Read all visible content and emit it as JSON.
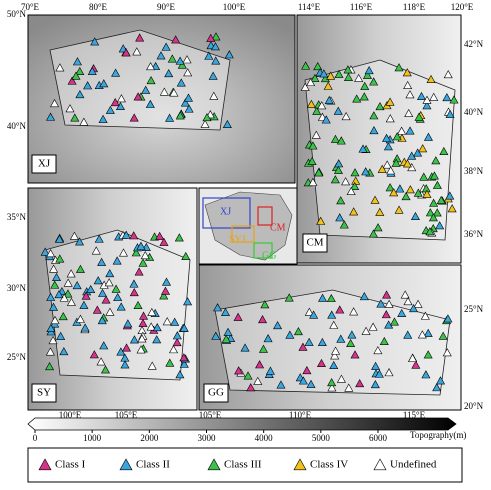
{
  "panels": [
    {
      "label": "XJ",
      "top_ticks": [
        "70°E",
        "80°E",
        "90°E",
        "100°E"
      ],
      "left_ticks": [
        "50°N",
        "40°N"
      ]
    },
    {
      "label": "CM",
      "top_ticks": [
        "114°E",
        "116°E",
        "118°E",
        "120°E"
      ],
      "right_ticks": [
        "42°N",
        "40°N",
        "38°N",
        "36°N"
      ]
    },
    {
      "label": "SY",
      "left_ticks": [
        "35°N",
        "30°N",
        "25°N"
      ],
      "bottom_ticks": [
        "100°E",
        "105°E"
      ]
    },
    {
      "label": "GG",
      "bottom_ticks": [
        "105°E",
        "110°E",
        "115°E"
      ],
      "right_ticks": [
        "25°N",
        "20°N"
      ]
    }
  ],
  "inset": {
    "labels": [
      "XJ",
      "CM",
      "SYJ",
      "GG"
    ]
  },
  "colorbar": {
    "label": "Topography(m)",
    "ticks": [
      0,
      1000,
      2000,
      3000,
      4000,
      5000,
      6000
    ]
  },
  "legend": [
    {
      "name": "Class I",
      "color": "#d6338a"
    },
    {
      "name": "Class II",
      "color": "#3aa6dd"
    },
    {
      "name": "Class III",
      "color": "#3cc24a"
    },
    {
      "name": "Class IV",
      "color": "#f2c21b"
    },
    {
      "name": "Undefined",
      "color": "#ffffff"
    }
  ]
}
